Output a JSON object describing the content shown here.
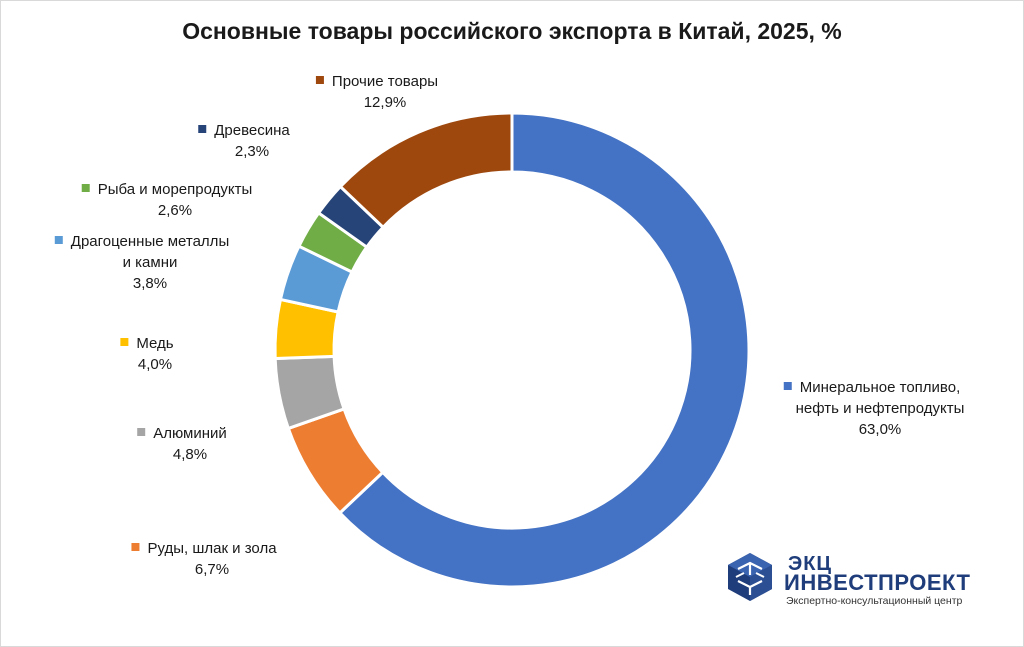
{
  "title": "Основные товары российского экспорта в Китай, 2025, %",
  "chart_data": {
    "type": "pie",
    "variant": "donut",
    "title": "Основные товары российского экспорта в Китай, 2025, %",
    "unit": "%",
    "slices": [
      {
        "label": [
          "Минеральное топливо,",
          "нефть и нефтепродукты"
        ],
        "value": 63.0,
        "value_label": "63,0%",
        "color": "#4472C4",
        "name": "mineral-fuel"
      },
      {
        "label": [
          "Руды, шлак и зола"
        ],
        "value": 6.7,
        "value_label": "6,7%",
        "color": "#ED7D31",
        "name": "ores"
      },
      {
        "label": [
          "Алюминий"
        ],
        "value": 4.8,
        "value_label": "4,8%",
        "color": "#A5A5A5",
        "name": "aluminum"
      },
      {
        "label": [
          "Медь"
        ],
        "value": 4.0,
        "value_label": "4,0%",
        "color": "#FFC000",
        "name": "copper"
      },
      {
        "label": [
          "Драгоценные металлы",
          "и камни"
        ],
        "value": 3.8,
        "value_label": "3,8%",
        "color": "#5B9BD5",
        "name": "precious-metals"
      },
      {
        "label": [
          "Рыба и морепродукты"
        ],
        "value": 2.6,
        "value_label": "2,6%",
        "color": "#70AD47",
        "name": "fish"
      },
      {
        "label": [
          "Древесина"
        ],
        "value": 2.3,
        "value_label": "2,3%",
        "color": "#264478",
        "name": "wood"
      },
      {
        "label": [
          "Прочие товары"
        ],
        "value": 12.9,
        "value_label": "12,9%",
        "color": "#9E480E",
        "name": "other"
      }
    ]
  },
  "logo": {
    "line1": "ЭКЦ",
    "line2": "ИНВЕСТПРОЕКТ",
    "line3": "Экспертно-консультационный центр"
  }
}
